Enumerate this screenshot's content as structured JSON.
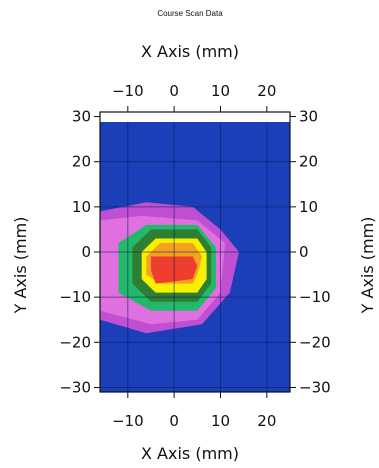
{
  "chart_data": {
    "type": "heatmap",
    "title": "Course Scan Data",
    "x_label_top": "X Axis (mm)",
    "x_label_bottom": "X Axis (mm)",
    "y_label_left": "Y Axis (mm)",
    "y_label_right": "Y Axis (mm)",
    "x_range": [
      -16,
      25
    ],
    "y_range": [
      -31,
      31
    ],
    "x_ticks": [
      -10,
      0,
      10,
      20
    ],
    "y_ticks": [
      30,
      20,
      10,
      0,
      -10,
      -20,
      -30
    ],
    "x_tick_labels": [
      "−10",
      "0",
      "10",
      "20"
    ],
    "y_tick_labels": [
      "30",
      "20",
      "10",
      "0",
      "−10",
      "−20",
      "−30"
    ],
    "grid": true,
    "background_color": "#1a3fb8",
    "contour_colors": [
      "#1a3fb8",
      "#c14fd1",
      "#e070e0",
      "#23b86a",
      "#2e7f32",
      "#f8f000",
      "#f4a020",
      "#ee3e2e"
    ],
    "contour_levels": [
      {
        "level": 1,
        "points": [
          [
            -16,
            9
          ],
          [
            -6,
            11
          ],
          [
            4,
            10
          ],
          [
            10,
            5
          ],
          [
            14,
            0
          ],
          [
            12,
            -9
          ],
          [
            6,
            -16
          ],
          [
            -6,
            -18
          ],
          [
            -16,
            -15
          ]
        ]
      },
      {
        "level": 2,
        "points": [
          [
            -16,
            7
          ],
          [
            -7,
            8
          ],
          [
            5,
            7
          ],
          [
            11,
            2
          ],
          [
            10,
            -9
          ],
          [
            5,
            -15
          ],
          [
            -5,
            -16
          ],
          [
            -16,
            -13
          ]
        ]
      },
      {
        "level": 3,
        "points": [
          [
            -12,
            2
          ],
          [
            -6,
            6
          ],
          [
            5,
            6
          ],
          [
            9,
            1
          ],
          [
            9,
            -8
          ],
          [
            5,
            -13
          ],
          [
            -5,
            -13
          ],
          [
            -12,
            -9
          ]
        ]
      },
      {
        "level": 4,
        "points": [
          [
            -9,
            1
          ],
          [
            -5,
            5
          ],
          [
            5,
            5
          ],
          [
            8,
            1
          ],
          [
            8,
            -7
          ],
          [
            5,
            -11
          ],
          [
            -5,
            -11
          ],
          [
            -9,
            -7
          ]
        ]
      },
      {
        "level": 5,
        "points": [
          [
            -7,
            0
          ],
          [
            -4,
            3
          ],
          [
            5,
            3
          ],
          [
            7,
            0
          ],
          [
            7,
            -6
          ],
          [
            5,
            -9
          ],
          [
            -4,
            -9
          ],
          [
            -7,
            -6
          ]
        ]
      },
      {
        "level": 6,
        "points": [
          [
            -6,
            -1
          ],
          [
            -3,
            2
          ],
          [
            4,
            2
          ],
          [
            6,
            -1
          ],
          [
            5,
            -5
          ],
          [
            4,
            -7
          ],
          [
            -3,
            -7
          ],
          [
            -6,
            -5
          ]
        ]
      },
      {
        "level": 7,
        "points": [
          [
            -5,
            -1
          ],
          [
            4,
            -1
          ],
          [
            5,
            -3
          ],
          [
            4,
            -6
          ],
          [
            -4,
            -7
          ],
          [
            -5,
            -4
          ]
        ]
      }
    ]
  }
}
